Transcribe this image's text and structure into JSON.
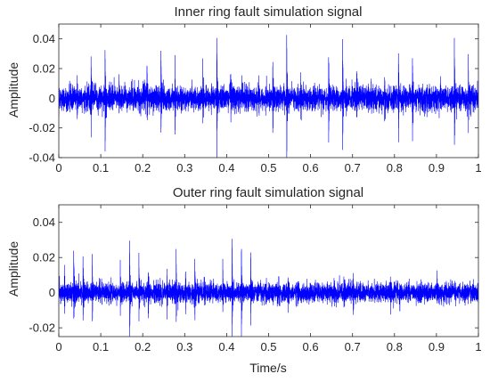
{
  "chart_data": [
    {
      "type": "line",
      "title": "Inner ring fault simulation signal",
      "xlabel": "",
      "ylabel": "Amplitude",
      "xlim": [
        0,
        1
      ],
      "ylim": [
        -0.04,
        0.05
      ],
      "xticks": [
        "0",
        "0.1",
        "0.2",
        "0.3",
        "0.4",
        "0.5",
        "0.6",
        "0.7",
        "0.8",
        "0.9",
        "1"
      ],
      "xtick_values": [
        0,
        0.1,
        0.2,
        0.3,
        0.4,
        0.5,
        0.6,
        0.7,
        0.8,
        0.9,
        1
      ],
      "yticks": [
        "-0.04",
        "-0.02",
        "0",
        "0.02",
        "0.04"
      ],
      "ytick_values": [
        -0.04,
        -0.02,
        0,
        0.02,
        0.04
      ],
      "grid": false,
      "line_color": "#0000ff",
      "noise_amplitude": 0.009,
      "impulse_period": 0.0333,
      "impulse_peak_max": 0.048,
      "impulse_peak_min": 0.02,
      "series": [
        {
          "name": "",
          "x_start": 0,
          "x_end": 1,
          "samples": 6000
        }
      ]
    },
    {
      "type": "line",
      "title": "Outer ring fault simulation signal",
      "xlabel": "Time/s",
      "ylabel": "Amplitude",
      "xlim": [
        0,
        1
      ],
      "ylim": [
        -0.025,
        0.05
      ],
      "xticks": [
        "0",
        "0.1",
        "0.2",
        "0.3",
        "0.4",
        "0.5",
        "0.6",
        "0.7",
        "0.8",
        "0.9",
        "1"
      ],
      "xtick_values": [
        0,
        0.1,
        0.2,
        0.3,
        0.4,
        0.5,
        0.6,
        0.7,
        0.8,
        0.9,
        1
      ],
      "yticks": [
        "-0.02",
        "0",
        "0.02",
        "0.04"
      ],
      "ytick_values": [
        -0.02,
        0,
        0.02,
        0.04
      ],
      "grid": false,
      "line_color": "#0000ff",
      "noise_amplitude": 0.006,
      "impulse_period": 0.0222,
      "impulse_peak_max": 0.033,
      "impulse_peak_min": 0.012,
      "series": [
        {
          "name": "",
          "x_start": 0,
          "x_end": 1,
          "samples": 6000
        }
      ]
    }
  ]
}
